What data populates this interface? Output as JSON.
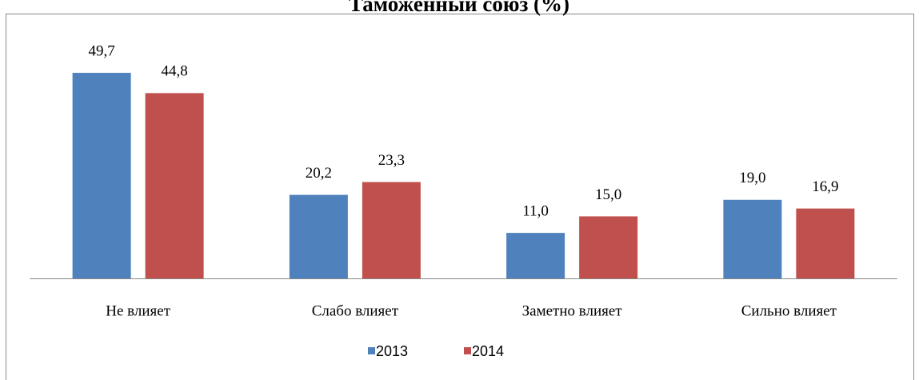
{
  "chart_data": {
    "type": "bar",
    "title": "Таможенный союз (%)",
    "categories": [
      "Не влияет",
      "Слабо влияет",
      "Заметно влияет",
      "Сильно влияет"
    ],
    "series": [
      {
        "name": "2013",
        "color": "#4f81bd",
        "values": [
          49.7,
          20.2,
          11.0,
          19.0
        ],
        "value_labels": [
          "49,7",
          "20,2",
          "11,0",
          "19,0"
        ]
      },
      {
        "name": "2014",
        "color": "#c0504d",
        "values": [
          44.8,
          23.3,
          15.0,
          16.9
        ],
        "value_labels": [
          "44,8",
          "23,3",
          "15,0",
          "16,9"
        ]
      }
    ],
    "legend": "bottom"
  }
}
